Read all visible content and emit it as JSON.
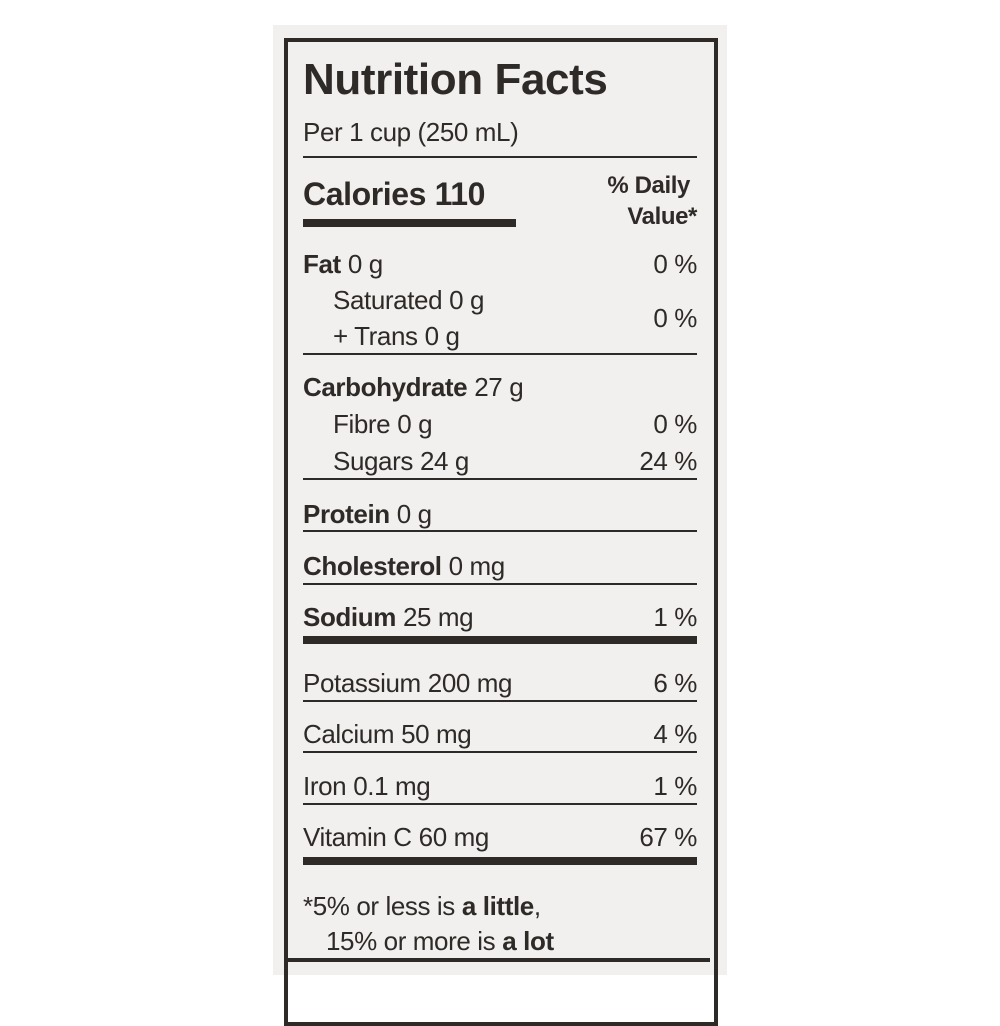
{
  "title": "Nutrition Facts",
  "serving": "Per 1 cup (250 mL)",
  "calories": "Calories 110",
  "daily_value_header": [
    "% Daily",
    "Value*"
  ],
  "rows": [
    {
      "name": "Fat",
      "amount": "0 g",
      "dv": "0 %"
    },
    {
      "name": "Saturated",
      "amount": "0 g",
      "dv": "0 %"
    },
    {
      "name": "+ Trans",
      "amount": "0 g"
    },
    {
      "name": "Carbohydrate",
      "amount": "27 g"
    },
    {
      "name": "Fibre",
      "amount": "0 g",
      "dv": "0 %"
    },
    {
      "name": "Sugars",
      "amount": "24 g",
      "dv": "24 %"
    },
    {
      "name": "Protein",
      "amount": "0 g"
    },
    {
      "name": "Cholesterol",
      "amount": "0 mg"
    },
    {
      "name": "Sodium",
      "amount": "25 mg",
      "dv": "1 %"
    },
    {
      "name": "Potassium",
      "amount": "200 mg",
      "dv": "6 %"
    },
    {
      "name": "Calcium",
      "amount": "50 mg",
      "dv": "4 %"
    },
    {
      "name": "Iron",
      "amount": "0.1 mg",
      "dv": "1 %"
    },
    {
      "name": "Vitamin C",
      "amount": "60 mg",
      "dv": "67 %"
    }
  ],
  "footnote": [
    [
      "*5% or less is",
      "a little",
      ","
    ],
    [
      "15% or more is",
      "a lot"
    ]
  ]
}
